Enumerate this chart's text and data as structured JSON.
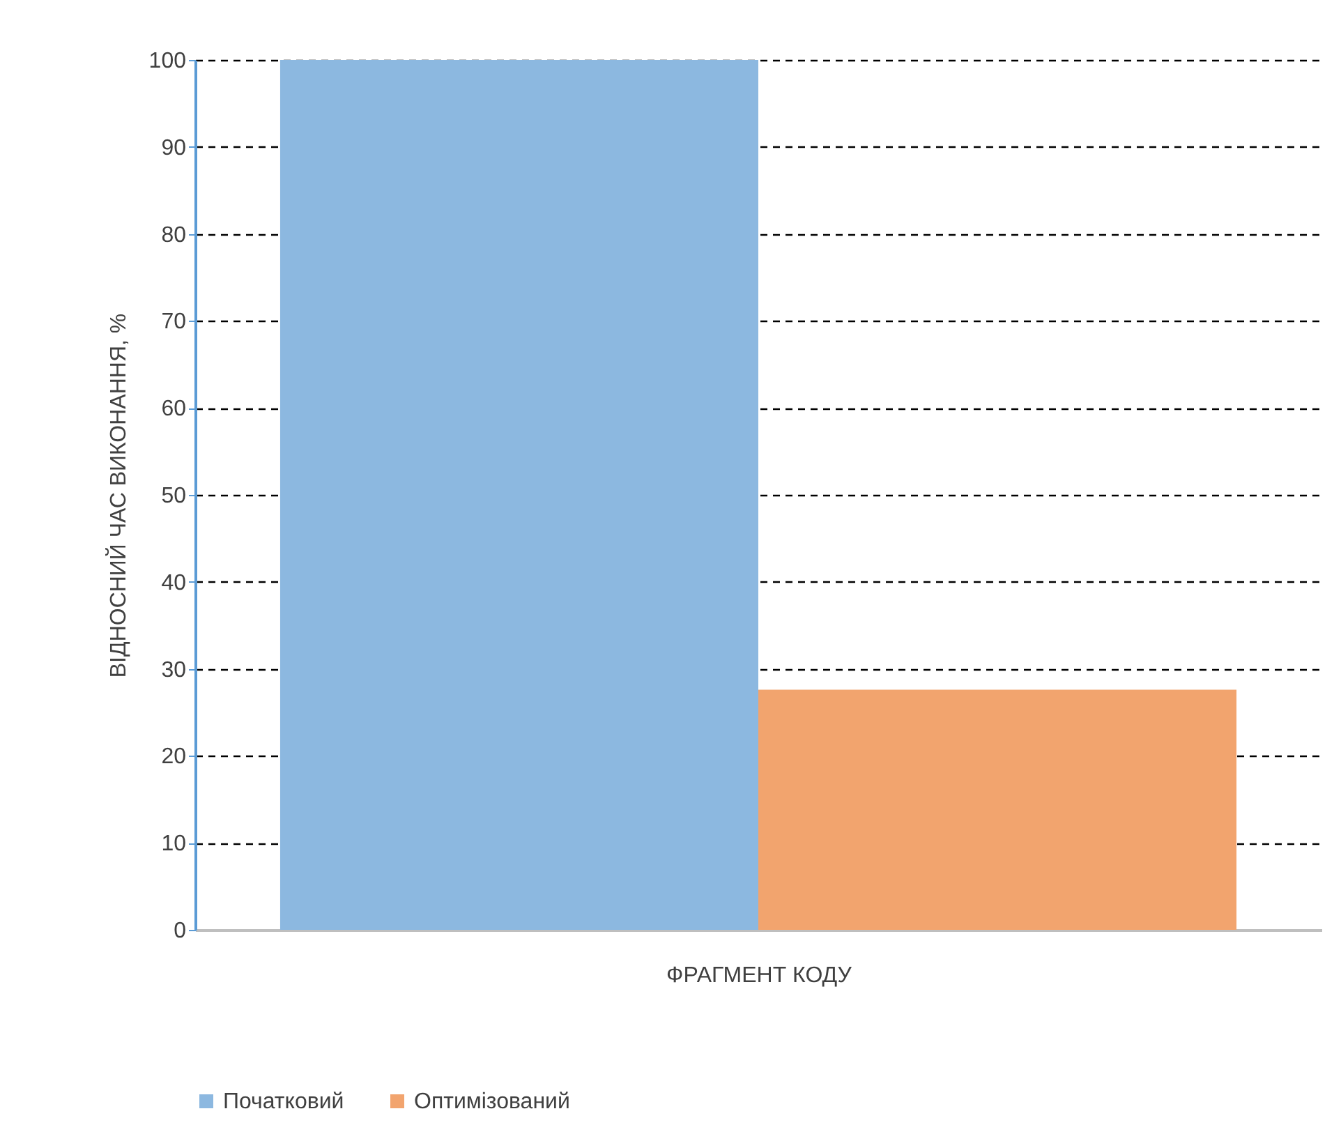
{
  "chart_data": {
    "type": "bar",
    "xlabel": "ФРАГМЕНТ КОДУ",
    "ylabel": "ВІДНОСНИЙ ЧАС ВИКОНАННЯ, %",
    "categories": [
      null
    ],
    "series": [
      {
        "name": "Початковий",
        "color": "#8cb8e0",
        "values": [
          100
        ]
      },
      {
        "name": "Оптимізований",
        "color": "#f2a46e",
        "values": [
          27.6
        ]
      }
    ],
    "ylim": [
      0,
      100
    ],
    "yticks": [
      0,
      10,
      20,
      30,
      40,
      50,
      60,
      70,
      80,
      90,
      100
    ],
    "grid": "y",
    "legend": "bottom"
  }
}
